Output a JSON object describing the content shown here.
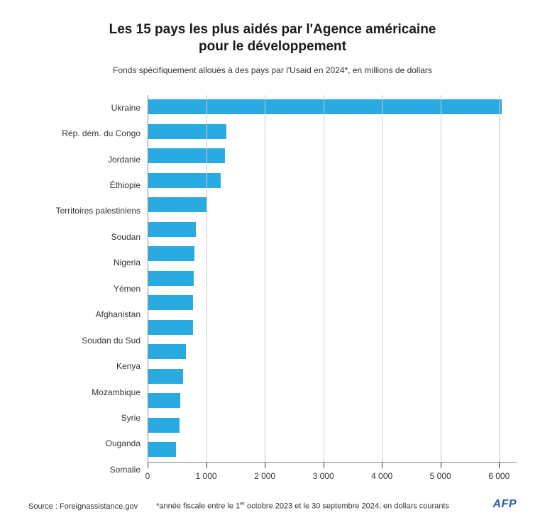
{
  "chart": {
    "type": "bar-horizontal",
    "title_line1": "Les 15 pays les plus aidés par l'Agence américaine",
    "title_line2": "pour le développement",
    "title_fontsize": 19,
    "title_color": "#1a1a1a",
    "subtitle": "Fonds spécifiquement alloués à des pays par l'Usaid en 2024*, en millions de dollars",
    "subtitle_fontsize": 12,
    "subtitle_color": "#333333",
    "background_color": "#ffffff",
    "bar_color": "#29abe2",
    "grid_color": "#cccccc",
    "y_axis_line_color": "#888888",
    "label_fontsize": 12,
    "label_color": "#333333",
    "tick_fontsize": 12,
    "tick_color": "#333333",
    "xmin": 0,
    "xmax": 6300,
    "xticks": [
      0,
      1000,
      2000,
      3000,
      4000,
      5000,
      6000
    ],
    "xtick_labels": [
      "0",
      "1 000",
      "2 000",
      "3 000",
      "4 000",
      "5 000",
      "6 000"
    ],
    "categories": [
      "Ukraine",
      "Rép. dém. du Congo",
      "Jordanie",
      "Éthiopie",
      "Territoires palestiniens",
      "Soudan",
      "Nigeria",
      "Yémen",
      "Afghanistan",
      "Soudan du Sud",
      "Kenya",
      "Mozambique",
      "Syrie",
      "Ouganda",
      "Somalie"
    ],
    "values": [
      6050,
      1350,
      1320,
      1250,
      1000,
      820,
      800,
      790,
      780,
      770,
      650,
      600,
      560,
      540,
      480
    ]
  },
  "footer": {
    "source": "Source : Foreignassistance.gov",
    "note_pre": "*année fiscale entre le 1",
    "note_sup": "er",
    "note_post": " octobre 2023 et le 30 septembre 2024, en dollars courants",
    "fontsize": 11,
    "color": "#333333",
    "logo_text": "AFP",
    "logo_color": "#2a5caa",
    "logo_fontsize": 16
  }
}
